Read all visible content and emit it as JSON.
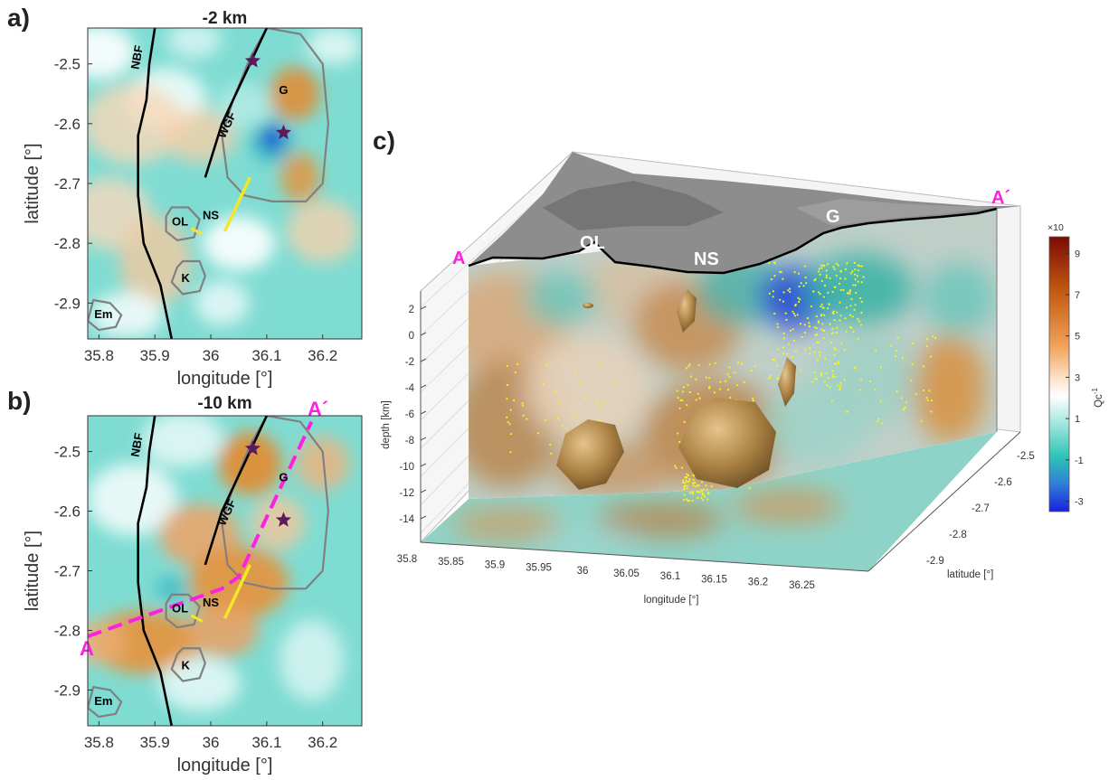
{
  "panel_letters": {
    "a": "a)",
    "b": "b)",
    "c": "c)"
  },
  "colors": {
    "fault": "#000000",
    "outline": "#808080",
    "ns_line": "#f5e62a",
    "profile": "#ff1fe0",
    "star": "#5a1a5c",
    "teal": "#2ec4b6",
    "orange": "#e58a2e",
    "blue": "#1f3fd6",
    "seismicity": "#f5f51e",
    "isosurface": "#a98042"
  },
  "chart_data": [
    {
      "type": "heatmap",
      "panel": "a)",
      "title": "-2 km",
      "xlabel": "longitude [°]",
      "ylabel": "latitude [°]",
      "xlim": [
        35.78,
        36.27
      ],
      "ylim": [
        -2.96,
        -2.44
      ],
      "xticks": [
        "35.8",
        "35.9",
        "36",
        "36.1",
        "36.2"
      ],
      "xtick_values": [
        35.8,
        35.9,
        36.0,
        36.1,
        36.2
      ],
      "yticks": [
        "-2.5",
        "-2.6",
        "-2.7",
        "-2.8",
        "-2.9"
      ],
      "ytick_values": [
        -2.5,
        -2.6,
        -2.7,
        -2.8,
        -2.9
      ],
      "fault_labels": [
        "NBF",
        "WGF"
      ],
      "volcano_labels": [
        "G",
        "OL",
        "NS",
        "K",
        "Em"
      ],
      "stars": [
        [
          36.075,
          -2.495
        ],
        [
          36.13,
          -2.615
        ]
      ],
      "anomalies": [
        {
          "color": "blue",
          "lon": 36.11,
          "lat": -2.625
        },
        {
          "color": "orange",
          "lon": 36.15,
          "lat": -2.55
        },
        {
          "color": "orange",
          "lon": 36.16,
          "lat": -2.69
        }
      ]
    },
    {
      "type": "heatmap",
      "panel": "b)",
      "title": "-10 km",
      "xlabel": "longitude [°]",
      "ylabel": "latitude [°]",
      "xlim": [
        35.78,
        36.27
      ],
      "ylim": [
        -2.96,
        -2.44
      ],
      "xticks": [
        "35.8",
        "35.9",
        "36",
        "36.1",
        "36.2"
      ],
      "xtick_values": [
        35.8,
        35.9,
        36.0,
        36.1,
        36.2
      ],
      "yticks": [
        "-2.5",
        "-2.6",
        "-2.7",
        "-2.8",
        "-2.9"
      ],
      "ytick_values": [
        -2.5,
        -2.6,
        -2.7,
        -2.8,
        -2.9
      ],
      "fault_labels": [
        "NBF",
        "WGF"
      ],
      "volcano_labels": [
        "G",
        "OL",
        "NS",
        "K",
        "Em"
      ],
      "profile_labels": [
        "A",
        "A´"
      ],
      "stars": [
        [
          36.075,
          -2.495
        ],
        [
          36.13,
          -2.615
        ]
      ],
      "profile_line": [
        [
          35.78,
          -2.81
        ],
        [
          36.02,
          -2.73
        ],
        [
          36.05,
          -2.71
        ],
        [
          36.18,
          -2.45
        ]
      ]
    },
    {
      "type": "3d-volume",
      "panel": "c)",
      "xlabel": "longitude [°]",
      "ylabel": "latitude [°]",
      "zlabel": "depth [km]",
      "xticks": [
        "35.8",
        "35.85",
        "35.9",
        "35.95",
        "36",
        "36.05",
        "36.1",
        "36.15",
        "36.2",
        "36.25"
      ],
      "yticks": [
        "-2.5",
        "-2.6",
        "-2.7",
        "-2.8",
        "-2.9"
      ],
      "zticks": [
        "2",
        "0",
        "-2",
        "-4",
        "-6",
        "-8",
        "-10",
        "-12",
        "-14"
      ],
      "surface_labels": [
        "A",
        "OL",
        "NS",
        "G",
        "A´"
      ],
      "colorbar": {
        "label": "Qc",
        "label_sup": "-1",
        "exponent": "×10",
        "exponent_sup": "-3",
        "ticks": [
          "9",
          "7",
          "5",
          "3",
          "1",
          "-1",
          "-3"
        ],
        "range": [
          -3.5,
          9.8
        ]
      }
    }
  ]
}
